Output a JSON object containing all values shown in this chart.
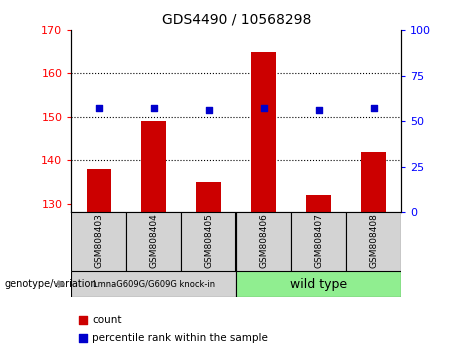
{
  "title": "GDS4490 / 10568298",
  "samples": [
    "GSM808403",
    "GSM808404",
    "GSM808405",
    "GSM808406",
    "GSM808407",
    "GSM808408"
  ],
  "bar_values": [
    138,
    149,
    135,
    165,
    132,
    142
  ],
  "percentile_values": [
    57,
    57,
    56,
    57,
    56,
    57
  ],
  "bar_color": "#cc0000",
  "dot_color": "#0000cc",
  "ylim_left": [
    128,
    170
  ],
  "ylim_right": [
    0,
    100
  ],
  "yticks_left": [
    130,
    140,
    150,
    160,
    170
  ],
  "yticks_right": [
    0,
    25,
    50,
    75,
    100
  ],
  "grid_ticks": [
    140,
    150,
    160
  ],
  "group1_label": "LmnaG609G/G609G knock-in",
  "group2_label": "wild type",
  "group1_bg": "#d3d3d3",
  "group2_bg": "#90ee90",
  "genotype_label": "genotype/variation",
  "legend_bar_label": "count",
  "legend_dot_label": "percentile rank within the sample",
  "bar_width": 0.45,
  "sample_box_bg": "#d3d3d3"
}
